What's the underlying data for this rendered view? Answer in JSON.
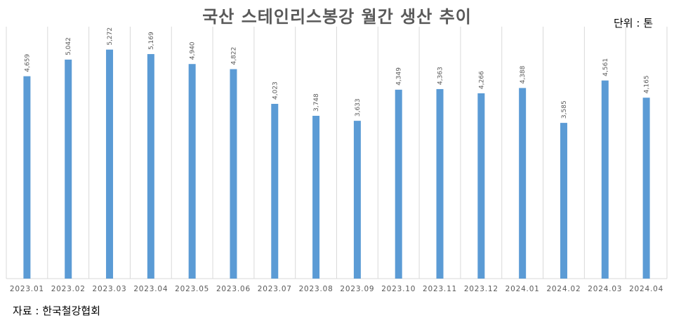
{
  "title": "국산 스테인리스봉강 월간 생산 추이",
  "unit_label": "단위 : 톤",
  "source_label": "자료 : 한국철강협회",
  "colors": {
    "bar": "#5b9bd5",
    "grid": "#d9d9d9",
    "text": "#595959"
  },
  "chart_data": {
    "type": "bar",
    "title": "국산 스테인리스봉강 월간 생산 추이",
    "xlabel": "",
    "ylabel": "",
    "unit": "톤",
    "categories": [
      "2023.01",
      "2023.02",
      "2023.03",
      "2023.04",
      "2023.05",
      "2023.06",
      "2023.07",
      "2023.08",
      "2023.09",
      "2023.10",
      "2023.11",
      "2023.12",
      "2024.01",
      "2024.02",
      "2024.03",
      "2024.04"
    ],
    "values": [
      4659,
      5042,
      5272,
      5169,
      4940,
      4822,
      4023,
      3748,
      3633,
      4349,
      4363,
      4266,
      4388,
      3585,
      4561,
      4165
    ],
    "value_labels": [
      "4,659",
      "5,042",
      "5,272",
      "5,169",
      "4,940",
      "4,822",
      "4,023",
      "3,748",
      "3,633",
      "4,349",
      "4,363",
      "4,266",
      "4,388",
      "3,585",
      "4,561",
      "4,165"
    ],
    "ylim": [
      0,
      5800
    ],
    "grid": "vertical category separators",
    "legend": "none"
  }
}
